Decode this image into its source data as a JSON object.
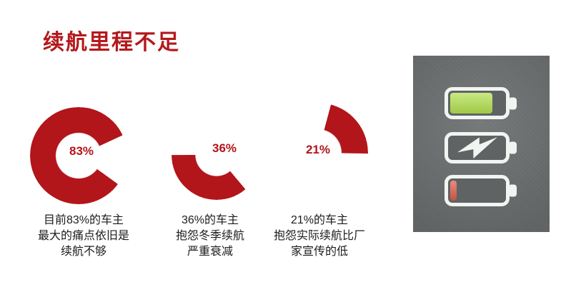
{
  "title": {
    "text": "续航里程不足",
    "color": "#b4191c"
  },
  "chart_data": [
    {
      "type": "donut",
      "label": "83%",
      "value": 83,
      "unit": "%",
      "color": "#b2151a",
      "hole_ratio": 0.47,
      "start_angle_deg": 126,
      "label_position": "center",
      "caption_lines": [
        "目前83%的车主",
        "最大的痛点依旧是",
        "续航不够"
      ]
    },
    {
      "type": "donut",
      "label": "36%",
      "value": 36,
      "unit": "%",
      "color": "#b2151a",
      "hole_ratio": 0.47,
      "start_angle_deg": 140,
      "label_position": "upper-right-of-arc",
      "caption_lines": [
        "36%的车主",
        "抱怨冬季续航",
        "严重衰减"
      ]
    },
    {
      "type": "donut",
      "label": "21%",
      "value": 21,
      "unit": "%",
      "color": "#b2151a",
      "hole_ratio": 0.47,
      "start_angle_deg": 15,
      "label_position": "left-of-arc",
      "caption_lines": [
        "21%的车主",
        "抱怨实际续航比厂",
        "家宣传的低"
      ]
    }
  ],
  "battery_panel": {
    "background": "#6b6f70",
    "batteries": [
      {
        "name": "battery-full",
        "fill_percent": 78,
        "fill_color": "#b2df4e"
      },
      {
        "name": "battery-charging",
        "icon": "lightning-bolt"
      },
      {
        "name": "battery-low",
        "fill_percent": 12,
        "fill_color": "#dc5a48"
      }
    ]
  }
}
